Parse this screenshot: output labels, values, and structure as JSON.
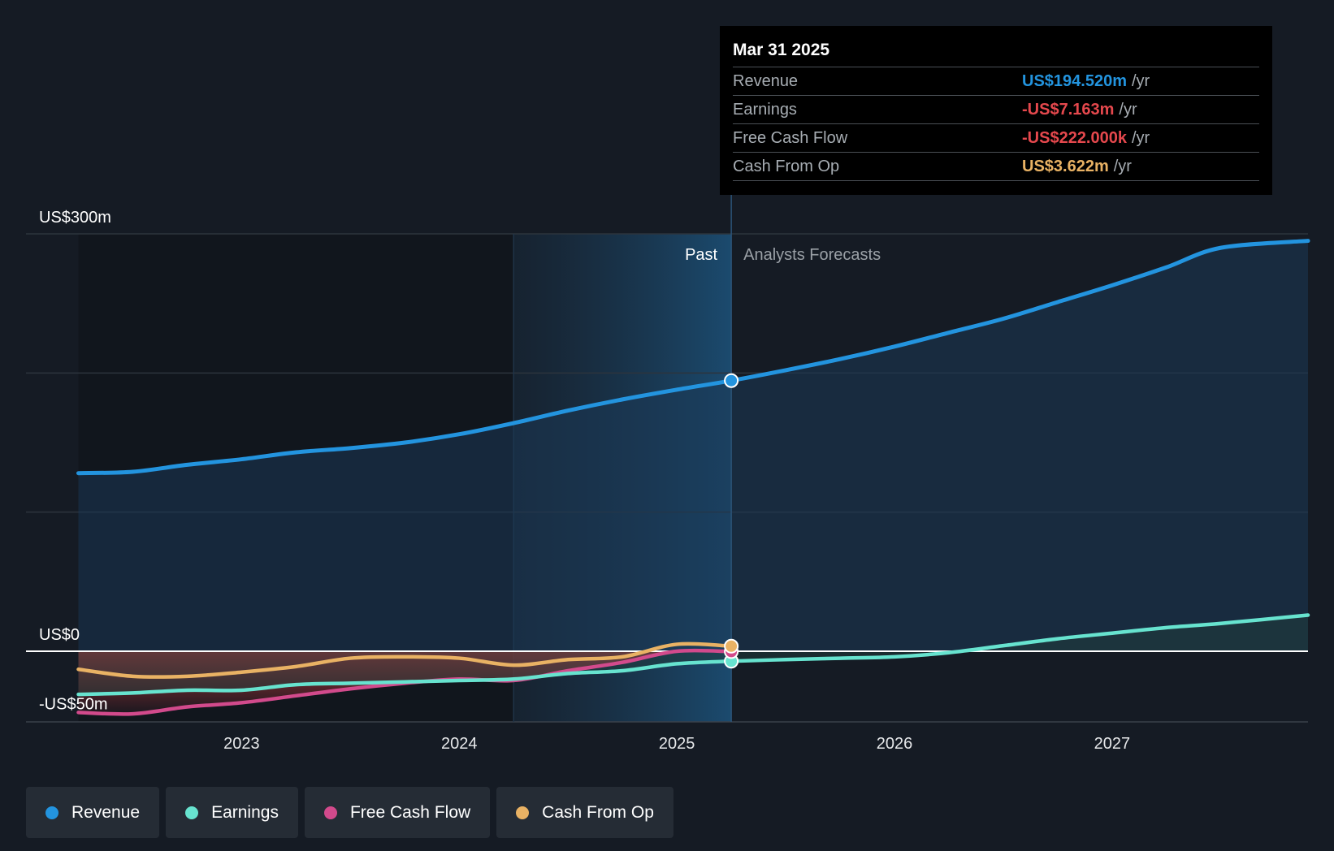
{
  "chart_data": {
    "type": "line",
    "x_unit": "year",
    "x_ticks": [
      "2023",
      "2024",
      "2025",
      "2026",
      "2027"
    ],
    "y_ticks": [
      {
        "value": 300,
        "label": "US$300m"
      },
      {
        "value": 0,
        "label": "US$0"
      },
      {
        "value": -50,
        "label": "-US$50m"
      }
    ],
    "ylim": [
      -50,
      300
    ],
    "xlim": [
      2022.0,
      2028.0
    ],
    "past_start": 2024.25,
    "divider_x": 2025.25,
    "region_labels": {
      "past": "Past",
      "forecast": "Analysts Forecasts"
    },
    "colors": {
      "revenue": "#2394df",
      "earnings": "#67e3cf",
      "fcf": "#d24a8c",
      "cfo": "#e9b264",
      "background": "#151b24"
    },
    "series": [
      {
        "name": "Revenue",
        "key": "revenue",
        "points": [
          [
            2022.25,
            128
          ],
          [
            2022.5,
            129
          ],
          [
            2022.75,
            134
          ],
          [
            2023.0,
            138
          ],
          [
            2023.25,
            143
          ],
          [
            2023.5,
            146
          ],
          [
            2023.75,
            150
          ],
          [
            2024.0,
            156
          ],
          [
            2024.25,
            164
          ],
          [
            2024.5,
            173
          ],
          [
            2024.75,
            181
          ],
          [
            2025.0,
            188
          ],
          [
            2025.25,
            194.52
          ],
          [
            2025.5,
            202
          ],
          [
            2025.75,
            210
          ],
          [
            2026.0,
            219
          ],
          [
            2026.25,
            229
          ],
          [
            2026.5,
            239
          ],
          [
            2026.75,
            251
          ],
          [
            2027.0,
            263
          ],
          [
            2027.25,
            276
          ],
          [
            2027.5,
            290
          ],
          [
            2027.9,
            295
          ]
        ]
      },
      {
        "name": "Earnings",
        "key": "earnings",
        "points": [
          [
            2022.25,
            -31
          ],
          [
            2022.5,
            -30
          ],
          [
            2022.75,
            -28
          ],
          [
            2023.0,
            -28
          ],
          [
            2023.25,
            -24
          ],
          [
            2023.5,
            -23
          ],
          [
            2023.75,
            -22
          ],
          [
            2024.0,
            -21
          ],
          [
            2024.25,
            -20
          ],
          [
            2024.5,
            -16
          ],
          [
            2024.75,
            -14
          ],
          [
            2025.0,
            -9
          ],
          [
            2025.25,
            -7.163
          ],
          [
            2025.5,
            -6
          ],
          [
            2025.75,
            -5
          ],
          [
            2026.0,
            -4
          ],
          [
            2026.25,
            -1
          ],
          [
            2026.5,
            4
          ],
          [
            2026.75,
            9
          ],
          [
            2027.0,
            13
          ],
          [
            2027.25,
            17
          ],
          [
            2027.5,
            20
          ],
          [
            2027.9,
            26
          ]
        ]
      },
      {
        "name": "Free Cash Flow",
        "key": "fcf",
        "points": [
          [
            2022.25,
            -44
          ],
          [
            2022.5,
            -45
          ],
          [
            2022.75,
            -40
          ],
          [
            2023.0,
            -37
          ],
          [
            2023.25,
            -32
          ],
          [
            2023.5,
            -27
          ],
          [
            2023.75,
            -23
          ],
          [
            2024.0,
            -20
          ],
          [
            2024.25,
            -21
          ],
          [
            2024.5,
            -14
          ],
          [
            2024.75,
            -8
          ],
          [
            2025.0,
            0
          ],
          [
            2025.25,
            -0.222
          ]
        ]
      },
      {
        "name": "Cash From Op",
        "key": "cfo",
        "points": [
          [
            2022.25,
            -13
          ],
          [
            2022.5,
            -18
          ],
          [
            2022.75,
            -18
          ],
          [
            2023.0,
            -15
          ],
          [
            2023.25,
            -11
          ],
          [
            2023.5,
            -5
          ],
          [
            2023.75,
            -4
          ],
          [
            2024.0,
            -5
          ],
          [
            2024.25,
            -10
          ],
          [
            2024.5,
            -6
          ],
          [
            2024.75,
            -4
          ],
          [
            2025.0,
            5
          ],
          [
            2025.25,
            3.622
          ]
        ]
      }
    ],
    "highlight_x": 2025.25
  },
  "tooltip": {
    "date": "Mar 31 2025",
    "rows": [
      {
        "name": "Revenue",
        "value": "US$194.520m",
        "unit": "/yr",
        "color": "#2394df"
      },
      {
        "name": "Earnings",
        "value": "-US$7.163m",
        "unit": "/yr",
        "color": "#e5484d"
      },
      {
        "name": "Free Cash Flow",
        "value": "-US$222.000k",
        "unit": "/yr",
        "color": "#e5484d"
      },
      {
        "name": "Cash From Op",
        "value": "US$3.622m",
        "unit": "/yr",
        "color": "#e9b264"
      }
    ]
  },
  "legend": [
    {
      "label": "Revenue",
      "color": "#2394df"
    },
    {
      "label": "Earnings",
      "color": "#67e3cf"
    },
    {
      "label": "Free Cash Flow",
      "color": "#d24a8c"
    },
    {
      "label": "Cash From Op",
      "color": "#e9b264"
    }
  ]
}
